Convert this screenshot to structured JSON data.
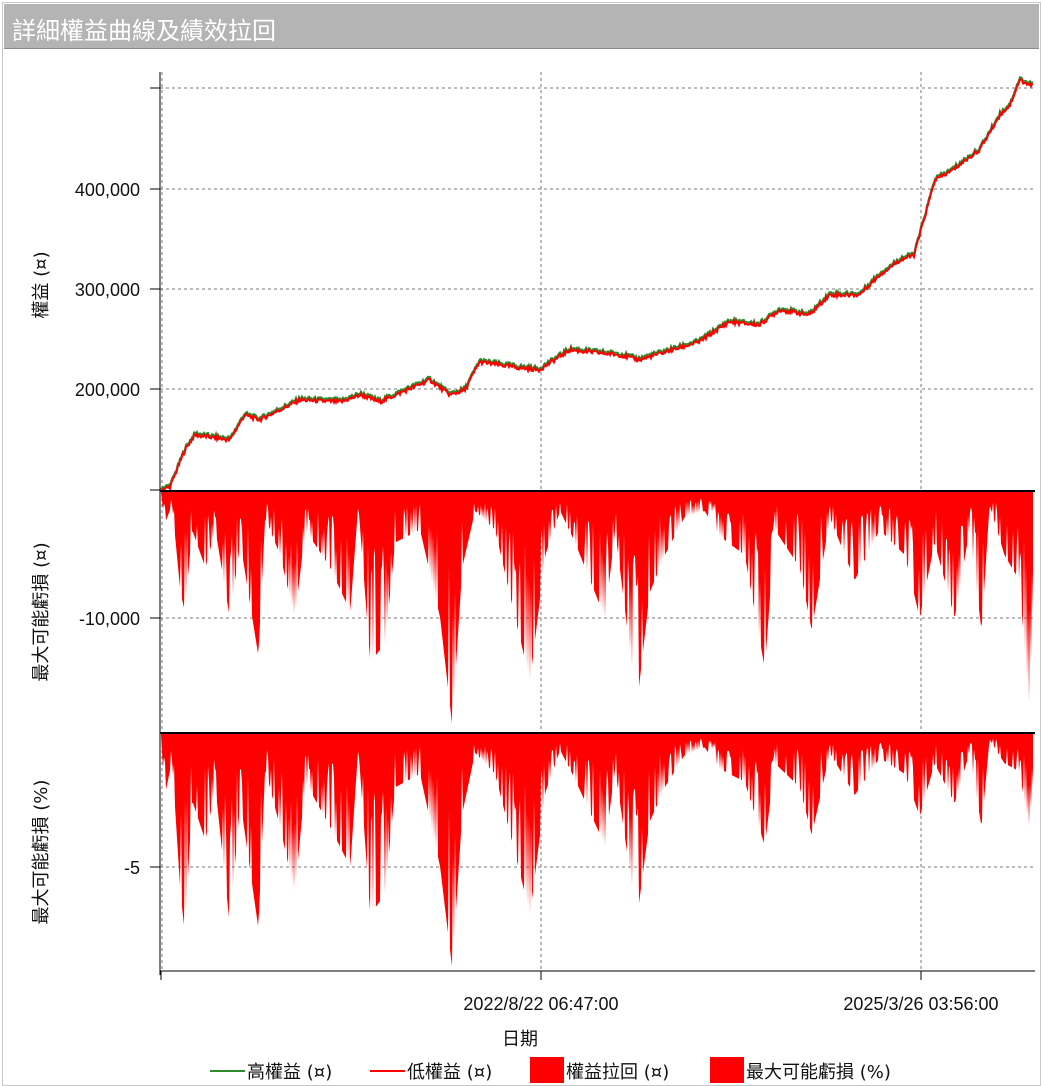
{
  "window": {
    "title": "詳細權益曲線及績效拉回"
  },
  "chart_data": [
    {
      "type": "line",
      "ylabel": "權益 (¤)",
      "yticks": [
        "200,000",
        "300,000",
        "400,000"
      ],
      "ylim": [
        99000,
        512000
      ],
      "grid": true,
      "series": [
        {
          "name": "高權益 (¤)",
          "color": "#2e8b2e"
        },
        {
          "name": "低權益 (¤)",
          "color": "#ff0000"
        }
      ],
      "x": [
        "2020-01-18",
        "2020-02-10",
        "2020-03-18",
        "2020-04-12",
        "2020-07-08",
        "2020-08-14",
        "2020-09-20",
        "2020-12-30",
        "2021-04-10",
        "2021-05-30",
        "2021-07-17",
        "2021-11-18",
        "2022-01-08",
        "2022-02-14",
        "2022-03-22",
        "2022-07-01",
        "2022-08-18",
        "2022-11-02",
        "2023-03-07",
        "2023-04-23",
        "2023-09-20",
        "2023-12-04",
        "2024-02-17",
        "2024-04-08",
        "2024-06-21",
        "2024-08-10",
        "2024-10-23",
        "2024-12-13",
        "2025-02-02",
        "2025-03-09",
        "2025-04-30",
        "2025-06-06",
        "2025-08-19",
        "2025-10-09",
        "2025-11-03",
        "2025-11-27",
        "2025-12-21",
        "2026-01-05"
      ],
      "values": [
        100000,
        103000,
        140000,
        155000,
        150000,
        175000,
        170000,
        190000,
        188000,
        195000,
        188000,
        210000,
        195000,
        200000,
        228000,
        222000,
        220000,
        240000,
        235000,
        230000,
        248000,
        268000,
        265000,
        280000,
        275000,
        295000,
        295000,
        315000,
        330000,
        335000,
        410000,
        418000,
        440000,
        475000,
        485000,
        510000,
        505000,
        505000
      ]
    },
    {
      "type": "area",
      "series_name": "權益拉回 (¤)",
      "ylabel": "最大可能虧損 (¤)",
      "yticks": [
        "-10,000"
      ],
      "ylim": [
        -19000,
        0
      ],
      "color": "#ff0000",
      "x": [
        "2020-01-18",
        "2020-01-28",
        "2020-02-15",
        "2020-03-07",
        "2020-03-18",
        "2020-04-05",
        "2020-05-08",
        "2020-06-02",
        "2020-07-08",
        "2020-08-03",
        "2020-09-17",
        "2020-10-04",
        "2020-11-10",
        "2020-12-17",
        "2021-01-12",
        "2021-03-15",
        "2021-05-04",
        "2021-05-24",
        "2021-06-23",
        "2021-07-30",
        "2021-08-24",
        "2021-10-25",
        "2021-12-14",
        "2022-01-13",
        "2022-02-07",
        "2022-03-11",
        "2022-04-30",
        "2022-06-19",
        "2022-07-26",
        "2022-09-02",
        "2022-10-09",
        "2022-11-15",
        "2023-01-29",
        "2023-02-23",
        "2023-04-18",
        "2023-05-20",
        "2023-06-27",
        "2023-08-15",
        "2023-10-04",
        "2023-11-10",
        "2024-01-12",
        "2024-03-02",
        "2024-03-27",
        "2024-05-28",
        "2024-06-27",
        "2024-08-11",
        "2024-10-12",
        "2024-12-13",
        "2025-02-14",
        "2025-03-23",
        "2025-04-29",
        "2025-06-18",
        "2025-07-25",
        "2025-08-24",
        "2025-09-13",
        "2025-10-20",
        "2025-11-26",
        "2025-12-21",
        "2026-01-05"
      ],
      "values": [
        0,
        -2500,
        -1000,
        -8000,
        -9500,
        -3000,
        -6000,
        -3000,
        -10000,
        -4000,
        -13000,
        -2000,
        -5000,
        -10000,
        -3000,
        -6000,
        -9500,
        -1000,
        -13500,
        -12000,
        -4000,
        -3000,
        -10000,
        -18500,
        -6000,
        -1500,
        -3000,
        -10000,
        -15000,
        -5000,
        -1500,
        -4000,
        -10000,
        -3000,
        -17000,
        -8000,
        -5000,
        -2000,
        -1500,
        -3500,
        -5000,
        -14000,
        -3000,
        -6000,
        -11000,
        -2000,
        -7000,
        -3000,
        -5000,
        -10000,
        -4000,
        -10000,
        -3000,
        -11000,
        -1000,
        -5000,
        -7000,
        -17000,
        -5000
      ]
    },
    {
      "type": "area",
      "series_name": "最大可能虧損 (%)",
      "ylabel": "最大可能虧損 (%)",
      "yticks": [
        "-5"
      ],
      "ylim": [
        -9,
        0
      ],
      "color": "#ff0000",
      "values": [
        0,
        -2.3,
        -1,
        -6,
        -7.5,
        -2.5,
        -4,
        -2,
        -7.2,
        -2.5,
        -7.3,
        -1.3,
        -3.5,
        -6,
        -1.8,
        -3.5,
        -5,
        -0.5,
        -6.8,
        -6,
        -2,
        -1.5,
        -5,
        -8.8,
        -3,
        -0.7,
        -1.5,
        -4.5,
        -6.8,
        -2.2,
        -0.6,
        -1.7,
        -4.2,
        -1.3,
        -7,
        -3.3,
        -2,
        -0.8,
        -0.5,
        -1.3,
        -1.8,
        -4.2,
        -1.1,
        -2,
        -3.8,
        -0.7,
        -2.3,
        -0.9,
        -1.5,
        -3.1,
        -1.1,
        -2.6,
        -0.7,
        -3.5,
        -0.2,
        -1.1,
        -1.4,
        -3.5,
        -1
      ]
    }
  ],
  "xaxis": {
    "label": "日期",
    "ticks": [
      "2022/8/22 06:47:00",
      "2025/3/26 03:56:00"
    ],
    "tick_dates": [
      "2022-08-22T06:47:00",
      "2025-03-26T03:56:00"
    ]
  },
  "legend": {
    "placement": "bottom",
    "items": [
      {
        "label": "高權益 (¤)",
        "kind": "line",
        "color": "#2e8b2e"
      },
      {
        "label": "低權益 (¤)",
        "kind": "line",
        "color": "#ff0000"
      },
      {
        "label": "權益拉回 (¤)",
        "kind": "box",
        "color": "#ff0000"
      },
      {
        "label": "最大可能虧損 (%)",
        "kind": "box",
        "color": "#ff0000"
      }
    ]
  }
}
